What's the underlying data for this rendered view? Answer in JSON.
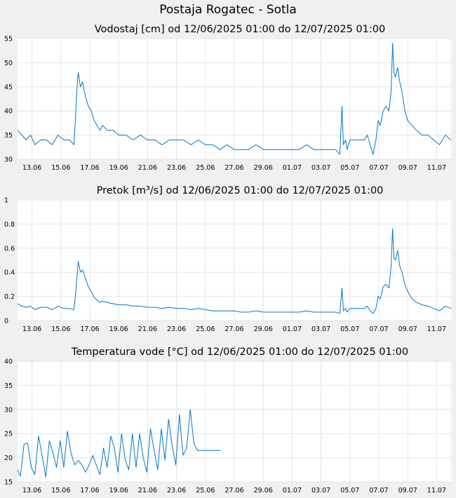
{
  "page": {
    "title": "Postaja Rogatec - Sotla"
  },
  "chart_data": [
    {
      "type": "line",
      "title": "Vodostaj [cm] od 12/06/2025 01:00 do 12/07/2025 01:00",
      "xlabel": "",
      "ylabel": "",
      "ylim": [
        30,
        55
      ],
      "yticks": [
        "30",
        "35",
        "40",
        "45",
        "50",
        "55"
      ],
      "xlim": [
        12.0,
        42.0
      ],
      "xticks": [
        {
          "x": 13,
          "label": "13.06"
        },
        {
          "x": 15,
          "label": "15.06"
        },
        {
          "x": 17,
          "label": "17.06"
        },
        {
          "x": 19,
          "label": "19.06"
        },
        {
          "x": 21,
          "label": "21.06"
        },
        {
          "x": 23,
          "label": "23.06"
        },
        {
          "x": 25,
          "label": "25.06"
        },
        {
          "x": 27,
          "label": "27.06"
        },
        {
          "x": 29,
          "label": "29.06"
        },
        {
          "x": 31,
          "label": "01.07"
        },
        {
          "x": 33,
          "label": "03.07"
        },
        {
          "x": 35,
          "label": "05.07"
        },
        {
          "x": 37,
          "label": "07.07"
        },
        {
          "x": 39,
          "label": "09.07"
        },
        {
          "x": 41,
          "label": "11.07"
        }
      ],
      "grid": true,
      "color": "#0077cc",
      "series": [
        {
          "x": [
            12.0,
            12.3,
            12.6,
            12.9,
            13.2,
            13.6,
            14.0,
            14.4,
            14.8,
            15.2,
            15.6,
            15.9,
            16.0,
            16.1,
            16.2,
            16.35,
            16.5,
            16.7,
            16.9,
            17.1,
            17.3,
            17.5,
            17.7,
            17.9,
            18.2,
            18.6,
            19.0,
            19.5,
            20.0,
            20.5,
            21.0,
            21.5,
            22.0,
            22.5,
            23.0,
            23.5,
            24.0,
            24.5,
            25.0,
            25.5,
            26.0,
            26.5,
            27.0,
            27.5,
            28.0,
            28.5,
            29.0,
            29.5,
            30.0,
            30.5,
            31.0,
            31.5,
            32.0,
            32.5,
            33.0,
            33.5,
            34.0,
            34.3,
            34.45,
            34.55,
            34.7,
            34.8,
            35.0,
            35.5,
            36.0,
            36.2,
            36.4,
            36.6,
            36.8,
            36.95,
            37.1,
            37.3,
            37.5,
            37.7,
            37.85,
            37.95,
            38.05,
            38.15,
            38.3,
            38.45,
            38.6,
            38.8,
            39.0,
            39.3,
            39.6,
            40.0,
            40.4,
            40.8,
            41.2,
            41.6,
            42.0
          ],
          "y": [
            36,
            35,
            34,
            35,
            33,
            34,
            34,
            33,
            35,
            34,
            34,
            33,
            38,
            44,
            48,
            45,
            46,
            43,
            41,
            40,
            38,
            37,
            36,
            37,
            36,
            36,
            35,
            35,
            34,
            35,
            34,
            34,
            33,
            34,
            34,
            34,
            33,
            34,
            33,
            33,
            32,
            33,
            32,
            32,
            32,
            33,
            32,
            32,
            32,
            32,
            32,
            32,
            33,
            32,
            32,
            32,
            32,
            31,
            41,
            33,
            34,
            32,
            34,
            34,
            34,
            35,
            33,
            31,
            34,
            38,
            37,
            40,
            41,
            40,
            44,
            54,
            48,
            47,
            49,
            46,
            44,
            40,
            38,
            37,
            36,
            35,
            35,
            34,
            33,
            35,
            34
          ]
        }
      ]
    },
    {
      "type": "line",
      "title": "Pretok [m³/s] od 12/06/2025 01:00 do 12/07/2025 01:00",
      "xlabel": "",
      "ylabel": "",
      "ylim": [
        0,
        1
      ],
      "yticks": [
        "0",
        "0.2",
        "0.4",
        "0.6",
        "0.8",
        "1"
      ],
      "xlim": [
        12.0,
        42.0
      ],
      "xticks": [
        {
          "x": 13,
          "label": "13.06"
        },
        {
          "x": 15,
          "label": "15.06"
        },
        {
          "x": 17,
          "label": "17.06"
        },
        {
          "x": 19,
          "label": "19.06"
        },
        {
          "x": 21,
          "label": "21.06"
        },
        {
          "x": 23,
          "label": "23.06"
        },
        {
          "x": 25,
          "label": "25.06"
        },
        {
          "x": 27,
          "label": "27.06"
        },
        {
          "x": 29,
          "label": "29.06"
        },
        {
          "x": 31,
          "label": "01.07"
        },
        {
          "x": 33,
          "label": "03.07"
        },
        {
          "x": 35,
          "label": "05.07"
        },
        {
          "x": 37,
          "label": "07.07"
        },
        {
          "x": 39,
          "label": "09.07"
        },
        {
          "x": 41,
          "label": "11.07"
        }
      ],
      "grid": true,
      "color": "#0077cc",
      "series": [
        {
          "x": [
            12.0,
            12.3,
            12.6,
            12.9,
            13.2,
            13.6,
            14.0,
            14.4,
            14.8,
            15.2,
            15.6,
            15.9,
            16.0,
            16.1,
            16.2,
            16.35,
            16.5,
            16.7,
            16.9,
            17.1,
            17.3,
            17.5,
            17.7,
            17.9,
            18.2,
            18.6,
            19.0,
            19.5,
            20.0,
            20.5,
            21.0,
            21.5,
            22.0,
            22.5,
            23.0,
            23.5,
            24.0,
            24.5,
            25.0,
            25.5,
            26.0,
            26.5,
            27.0,
            27.5,
            28.0,
            28.5,
            29.0,
            29.5,
            30.0,
            30.5,
            31.0,
            31.5,
            32.0,
            32.5,
            33.0,
            33.5,
            34.0,
            34.3,
            34.45,
            34.55,
            34.7,
            34.8,
            35.0,
            35.5,
            36.0,
            36.2,
            36.4,
            36.6,
            36.8,
            36.95,
            37.1,
            37.3,
            37.5,
            37.7,
            37.85,
            37.95,
            38.05,
            38.15,
            38.3,
            38.45,
            38.6,
            38.8,
            39.0,
            39.3,
            39.6,
            40.0,
            40.4,
            40.8,
            41.2,
            41.6,
            42.0
          ],
          "y": [
            0.14,
            0.12,
            0.11,
            0.12,
            0.09,
            0.11,
            0.11,
            0.09,
            0.12,
            0.1,
            0.1,
            0.09,
            0.2,
            0.35,
            0.49,
            0.4,
            0.42,
            0.35,
            0.28,
            0.24,
            0.19,
            0.17,
            0.15,
            0.16,
            0.15,
            0.14,
            0.13,
            0.13,
            0.12,
            0.12,
            0.11,
            0.11,
            0.1,
            0.11,
            0.1,
            0.1,
            0.09,
            0.1,
            0.09,
            0.08,
            0.08,
            0.08,
            0.08,
            0.07,
            0.07,
            0.08,
            0.07,
            0.07,
            0.07,
            0.07,
            0.07,
            0.07,
            0.08,
            0.07,
            0.07,
            0.07,
            0.07,
            0.06,
            0.27,
            0.08,
            0.1,
            0.07,
            0.1,
            0.1,
            0.1,
            0.12,
            0.08,
            0.06,
            0.1,
            0.2,
            0.18,
            0.28,
            0.3,
            0.27,
            0.45,
            0.76,
            0.52,
            0.5,
            0.58,
            0.45,
            0.4,
            0.3,
            0.24,
            0.18,
            0.15,
            0.13,
            0.12,
            0.1,
            0.08,
            0.12,
            0.1
          ]
        }
      ]
    },
    {
      "type": "line",
      "title": "Temperatura vode [°C] od 12/06/2025 01:00 do 12/07/2025 01:00",
      "xlabel": "",
      "ylabel": "",
      "ylim": [
        15,
        40
      ],
      "yticks": [
        "15",
        "20",
        "25",
        "30",
        "35",
        "40"
      ],
      "xlim": [
        12.0,
        42.0
      ],
      "xticks": [
        {
          "x": 13,
          "label": "13.06"
        },
        {
          "x": 15,
          "label": "15.06"
        },
        {
          "x": 17,
          "label": "17.06"
        },
        {
          "x": 19,
          "label": "19.06"
        },
        {
          "x": 21,
          "label": "21.06"
        },
        {
          "x": 23,
          "label": "23.06"
        },
        {
          "x": 25,
          "label": "25.06"
        },
        {
          "x": 27,
          "label": "27.06"
        },
        {
          "x": 29,
          "label": "29.06"
        },
        {
          "x": 31,
          "label": "01.07"
        },
        {
          "x": 33,
          "label": "03.07"
        },
        {
          "x": 35,
          "label": "05.07"
        },
        {
          "x": 37,
          "label": "07.07"
        },
        {
          "x": 39,
          "label": "09.07"
        },
        {
          "x": 41,
          "label": "11.07"
        }
      ],
      "grid": true,
      "color": "#0077cc",
      "series": [
        {
          "x": [
            12.0,
            12.2,
            12.45,
            12.7,
            12.95,
            13.2,
            13.45,
            13.7,
            13.95,
            14.2,
            14.45,
            14.7,
            14.95,
            15.2,
            15.45,
            15.7,
            15.95,
            16.2,
            16.45,
            16.7,
            16.95,
            17.2,
            17.45,
            17.7,
            17.95,
            18.2,
            18.45,
            18.7,
            18.95,
            19.2,
            19.45,
            19.7,
            19.95,
            20.2,
            20.45,
            20.7,
            20.95,
            21.2,
            21.45,
            21.7,
            21.95,
            22.2,
            22.45,
            22.7,
            22.95,
            23.2,
            23.45,
            23.7,
            23.95,
            24.2,
            24.45,
            24.7,
            24.95,
            25.2,
            25.45,
            25.7,
            25.95,
            26.05
          ],
          "y": [
            17.5,
            16.2,
            22.8,
            23.0,
            18.0,
            16.5,
            24.5,
            20.5,
            16.0,
            23.5,
            21.0,
            18.0,
            23.5,
            18.0,
            25.5,
            21.0,
            18.5,
            19.5,
            18.5,
            17.0,
            18.5,
            20.5,
            18.5,
            16.5,
            22.0,
            18.0,
            24.5,
            22.0,
            17.0,
            25.0,
            19.5,
            17.5,
            25.0,
            18.0,
            25.0,
            20.0,
            17.0,
            26.0,
            21.5,
            17.5,
            26.0,
            19.5,
            28.0,
            22.5,
            18.5,
            29.0,
            20.5,
            22.0,
            30.0,
            23.0,
            21.5,
            21.5,
            21.5,
            21.5,
            21.5,
            21.5,
            21.5,
            21.5
          ]
        }
      ]
    }
  ]
}
